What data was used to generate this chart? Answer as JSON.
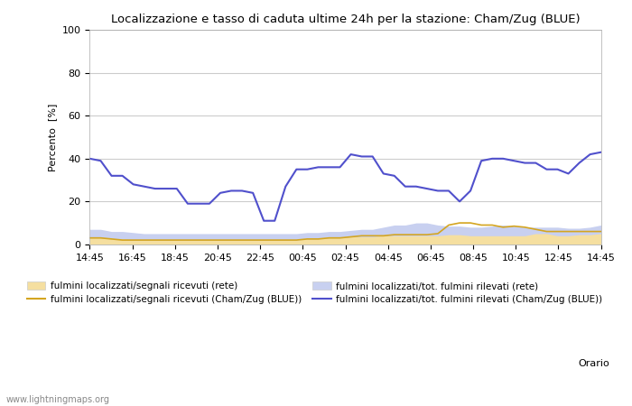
{
  "title": "Localizzazione e tasso di caduta ultime 24h per la stazione: Cham/Zug (BLUE)",
  "ylabel": "Percento  [%]",
  "xlabel_right": "Orario",
  "watermark": "www.lightningmaps.org",
  "xtick_labels": [
    "14:45",
    "16:45",
    "18:45",
    "20:45",
    "22:45",
    "00:45",
    "02:45",
    "04:45",
    "06:45",
    "08:45",
    "10:45",
    "12:45",
    "14:45"
  ],
  "ylim": [
    0,
    100
  ],
  "yticks": [
    0,
    20,
    40,
    60,
    80,
    100
  ],
  "background_color": "#ffffff",
  "plot_bg_color": "#ffffff",
  "grid_color": "#cccccc",
  "fill_rete_signals": [
    3,
    3,
    2.5,
    2.5,
    2,
    2,
    2,
    2,
    2,
    2,
    2,
    2,
    2,
    2,
    2,
    2,
    2,
    2,
    2,
    2,
    2.5,
    2.5,
    3,
    3,
    3.5,
    3.5,
    3.5,
    4,
    4,
    4,
    4,
    4,
    4,
    4.5,
    4.5,
    4,
    4,
    4,
    4,
    4,
    4,
    5,
    5,
    4,
    4,
    4.5,
    4.5,
    5
  ],
  "fill_rete_total": [
    7,
    7,
    6,
    6,
    5.5,
    5,
    5,
    5,
    5,
    5,
    5,
    5,
    5,
    5,
    5,
    5,
    5,
    5,
    5,
    5,
    5.5,
    5.5,
    6,
    6,
    6.5,
    7,
    7,
    8,
    9,
    9,
    10,
    10,
    9,
    8.5,
    8.5,
    8,
    8,
    8.5,
    9,
    8.5,
    8,
    8,
    8,
    8,
    7.5,
    7.5,
    8,
    9
  ],
  "line_blue_signals": [
    3,
    3,
    2.5,
    2,
    2,
    2,
    2,
    2,
    2,
    2,
    2,
    2,
    2,
    2,
    2,
    2,
    2,
    2,
    2,
    2,
    2.5,
    2.5,
    3,
    3,
    3.5,
    4,
    4,
    4,
    4.5,
    4.5,
    4.5,
    4.5,
    5,
    9,
    10,
    10,
    9,
    9,
    8,
    8.5,
    8,
    7,
    6,
    6,
    6,
    6,
    6,
    6
  ],
  "line_blue_total": [
    40,
    39,
    32,
    32,
    28,
    27,
    26,
    26,
    26,
    19,
    19,
    19,
    24,
    25,
    25,
    24,
    11,
    11,
    27,
    35,
    35,
    36,
    36,
    36,
    42,
    41,
    41,
    33,
    32,
    27,
    27,
    26,
    25,
    25,
    20,
    25,
    39,
    40,
    40,
    39,
    38,
    38,
    35,
    35,
    33,
    38,
    42,
    43
  ],
  "color_fill_signals": "#f5dfa0",
  "color_fill_total": "#c8d0f0",
  "color_line_signals": "#d4a520",
  "color_line_total": "#5050cc",
  "legend_labels": [
    "fulmini localizzati/segnali ricevuti (rete)",
    "fulmini localizzati/segnali ricevuti (Cham/Zug (BLUE))",
    "fulmini localizzati/tot. fulmini rilevati (rete)",
    "fulmini localizzati/tot. fulmini rilevati (Cham/Zug (BLUE))"
  ]
}
